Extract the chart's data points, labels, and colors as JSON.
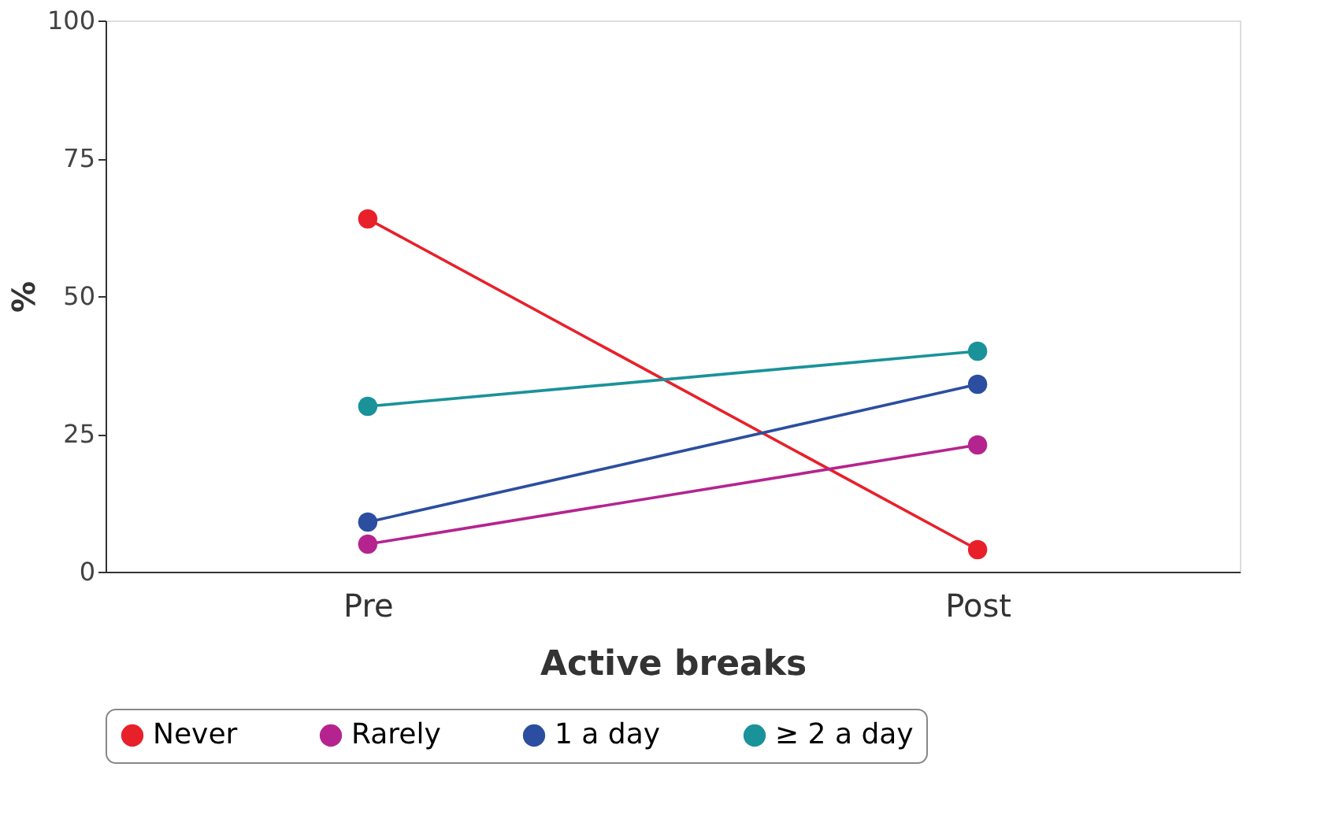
{
  "chart_data": {
    "type": "line",
    "xlabel": "Active breaks",
    "ylabel": "%",
    "categories": [
      "Pre",
      "Post"
    ],
    "series": [
      {
        "name": "Never",
        "color": "#e8202a",
        "values": [
          64,
          4
        ]
      },
      {
        "name": "Rarely",
        "color": "#b5248e",
        "values": [
          5,
          23
        ]
      },
      {
        "name": "1 a day",
        "color": "#2b4ea0",
        "values": [
          9,
          34
        ]
      },
      {
        "name": "≥ 2 a day",
        "color": "#1a929a",
        "values": [
          30,
          40
        ]
      }
    ],
    "ylim": [
      0,
      100
    ],
    "yticks": [
      0,
      25,
      50,
      75,
      100
    ],
    "grid": false,
    "legend": "bottom",
    "marker": "circle",
    "line_style": "solid"
  }
}
